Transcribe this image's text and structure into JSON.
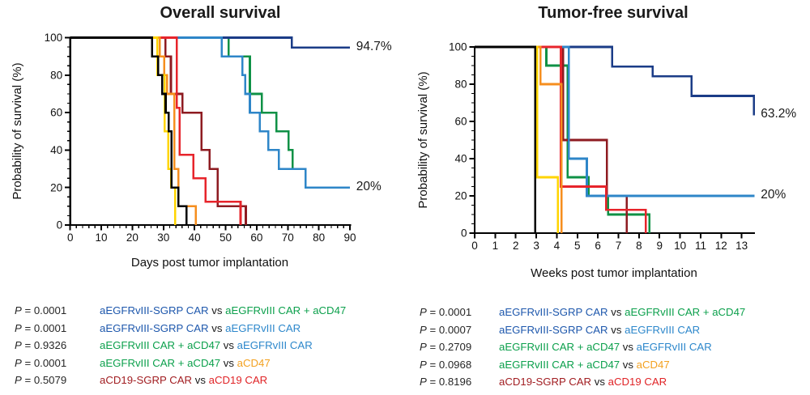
{
  "chart_data": {
    "charts": [
      {
        "type": "line",
        "subtype": "kaplan-meier-step",
        "title": "Overall survival",
        "xlabel": "Days post tumor implantation",
        "ylabel": "Probability of survival (%)",
        "x_axis": {
          "ticks": [
            0,
            10,
            20,
            30,
            40,
            50,
            60,
            70,
            80,
            90
          ],
          "minor_step": 2,
          "max": 90.4
        },
        "y_axis": {
          "ticks": [
            0,
            20,
            40,
            60,
            80,
            100
          ],
          "minor_step": 5,
          "range": [
            0,
            100
          ]
        },
        "grid": false,
        "legend_position": "none",
        "annotations": [
          {
            "text": "94.7%",
            "x": 92,
            "y": 95.2
          },
          {
            "text": "20%",
            "x": 92,
            "y": 20.2
          }
        ],
        "series": [
          {
            "id": "green",
            "label": "aEGFRvIII CAR + aCD47",
            "color": "#0f9146",
            "points": [
              [
                0,
                100
              ],
              [
                51,
                100
              ],
              [
                51,
                90
              ],
              [
                57.8,
                90
              ],
              [
                57.8,
                70
              ],
              [
                61.7,
                70
              ],
              [
                61.7,
                60
              ],
              [
                66.3,
                60
              ],
              [
                66.3,
                50
              ],
              [
                70.3,
                50
              ],
              [
                70.3,
                40
              ],
              [
                71.6,
                40
              ],
              [
                71.6,
                30
              ],
              [
                75.7,
                30
              ],
              [
                75.7,
                20
              ],
              [
                90,
                20
              ]
            ]
          },
          {
            "id": "darkred",
            "label": "aCD19-SGRP CAR",
            "color": "#8e1b21",
            "points": [
              [
                0,
                100
              ],
              [
                30.6,
                100
              ],
              [
                30.6,
                90
              ],
              [
                32.4,
                90
              ],
              [
                32.4,
                70
              ],
              [
                36.1,
                70
              ],
              [
                36.1,
                60
              ],
              [
                42.2,
                60
              ],
              [
                42.2,
                40
              ],
              [
                44.8,
                40
              ],
              [
                44.8,
                30
              ],
              [
                47.4,
                30
              ],
              [
                47.4,
                10
              ],
              [
                56.5,
                10
              ],
              [
                56.5,
                0
              ]
            ]
          },
          {
            "id": "darkblue",
            "label": "aEGFRvIII-SGRP CAR",
            "color": "#1b3c87",
            "points": [
              [
                0,
                100
              ],
              [
                71.3,
                100
              ],
              [
                71.3,
                94.7
              ],
              [
                90,
                94.7
              ]
            ]
          },
          {
            "id": "lightblue",
            "label": "aEGFRvIII CAR",
            "color": "#2e86c8",
            "points": [
              [
                0,
                100
              ],
              [
                48.7,
                100
              ],
              [
                48.7,
                90
              ],
              [
                55.4,
                90
              ],
              [
                55.4,
                80
              ],
              [
                56.3,
                80
              ],
              [
                56.3,
                70
              ],
              [
                57.8,
                70
              ],
              [
                57.8,
                60
              ],
              [
                61,
                60
              ],
              [
                61,
                50
              ],
              [
                63.7,
                50
              ],
              [
                63.7,
                40
              ],
              [
                67.1,
                40
              ],
              [
                67.1,
                30
              ],
              [
                75.7,
                30
              ],
              [
                75.7,
                20
              ],
              [
                90,
                20
              ]
            ]
          },
          {
            "id": "red",
            "label": "aCD19 CAR",
            "color": "#e7242b",
            "points": [
              [
                0,
                100
              ],
              [
                34.3,
                100
              ],
              [
                34.3,
                62.5
              ],
              [
                35.2,
                62.5
              ],
              [
                35.2,
                37.5
              ],
              [
                39.6,
                37.5
              ],
              [
                39.6,
                25
              ],
              [
                43.5,
                25
              ],
              [
                43.5,
                12.5
              ],
              [
                54.8,
                12.5
              ],
              [
                54.8,
                0
              ]
            ]
          },
          {
            "id": "orange",
            "label": "aCD47",
            "color": "#f68e1e",
            "points": [
              [
                0,
                100
              ],
              [
                28.8,
                100
              ],
              [
                28.8,
                90
              ],
              [
                30.2,
                90
              ],
              [
                30.2,
                80
              ],
              [
                31.2,
                80
              ],
              [
                31.2,
                70
              ],
              [
                33.5,
                70
              ],
              [
                33.5,
                30
              ],
              [
                34.8,
                30
              ],
              [
                34.8,
                10
              ],
              [
                40.4,
                10
              ],
              [
                40.4,
                0
              ]
            ]
          },
          {
            "id": "yellow",
            "color": "#ffd400",
            "points": [
              [
                0,
                100
              ],
              [
                28,
                100
              ],
              [
                28,
                80
              ],
              [
                30.4,
                80
              ],
              [
                30.4,
                50
              ],
              [
                31.5,
                50
              ],
              [
                31.5,
                30
              ],
              [
                32.5,
                30
              ],
              [
                32.5,
                20
              ],
              [
                33.8,
                20
              ],
              [
                33.8,
                0
              ]
            ]
          },
          {
            "id": "black",
            "color": "#000000",
            "points": [
              [
                0,
                100
              ],
              [
                26.3,
                100
              ],
              [
                26.3,
                90
              ],
              [
                28.3,
                90
              ],
              [
                28.3,
                80
              ],
              [
                29.6,
                80
              ],
              [
                29.6,
                70
              ],
              [
                30.7,
                70
              ],
              [
                30.7,
                60
              ],
              [
                31.7,
                60
              ],
              [
                31.7,
                50
              ],
              [
                32.6,
                50
              ],
              [
                32.6,
                20
              ],
              [
                34.8,
                20
              ],
              [
                34.8,
                10
              ],
              [
                37.4,
                10
              ],
              [
                37.4,
                0
              ]
            ]
          }
        ]
      },
      {
        "type": "line",
        "subtype": "kaplan-meier-step",
        "title": "Tumor-free survival",
        "xlabel": "Weeks post tumor implantation",
        "ylabel": "Probability of survival (%)",
        "x_axis": {
          "ticks": [
            0,
            1,
            2,
            3,
            4,
            5,
            6,
            7,
            8,
            9,
            10,
            11,
            12,
            13
          ],
          "minor_step": null,
          "max": 13.65
        },
        "y_axis": {
          "ticks": [
            0,
            20,
            40,
            60,
            80,
            100
          ],
          "minor_step": 5,
          "range": [
            0,
            100
          ]
        },
        "grid": false,
        "legend_position": "none",
        "annotations": [
          {
            "text": "63.2%",
            "x": 13.93,
            "y": 64
          },
          {
            "text": "20%",
            "x": 13.93,
            "y": 20.3
          }
        ],
        "series": [
          {
            "id": "green",
            "label": "aEGFRvIII CAR + aCD47",
            "color": "#0f9146",
            "points": [
              [
                0,
                100
              ],
              [
                3.49,
                100
              ],
              [
                3.49,
                90
              ],
              [
                4.52,
                90
              ],
              [
                4.52,
                30
              ],
              [
                5.55,
                30
              ],
              [
                5.55,
                20
              ],
              [
                6.5,
                20
              ],
              [
                6.5,
                10
              ],
              [
                8.5,
                10
              ],
              [
                8.5,
                0
              ]
            ]
          },
          {
            "id": "darkred",
            "label": "aCD19-SGRP CAR",
            "color": "#8e1b21",
            "points": [
              [
                0,
                100
              ],
              [
                4.31,
                100
              ],
              [
                4.31,
                50
              ],
              [
                6.43,
                50
              ],
              [
                6.43,
                20
              ],
              [
                7.4,
                20
              ],
              [
                7.4,
                0
              ]
            ]
          },
          {
            "id": "darkblue",
            "label": "aEGFRvIII-SGRP CAR",
            "color": "#1b3c87",
            "points": [
              [
                0,
                100
              ],
              [
                6.7,
                100
              ],
              [
                6.7,
                89.5
              ],
              [
                8.66,
                89.5
              ],
              [
                8.66,
                84.2
              ],
              [
                10.56,
                84.2
              ],
              [
                10.56,
                73.7
              ],
              [
                13.6,
                73.7
              ],
              [
                13.6,
                63.2
              ]
            ]
          },
          {
            "id": "lightblue",
            "label": "aEGFRvIII CAR",
            "color": "#2e86c8",
            "points": [
              [
                0,
                100
              ],
              [
                4.59,
                100
              ],
              [
                4.59,
                40
              ],
              [
                5.46,
                40
              ],
              [
                5.46,
                20
              ],
              [
                13.63,
                20
              ]
            ]
          },
          {
            "id": "red",
            "label": "aCD19 CAR",
            "color": "#e7242b",
            "points": [
              [
                0,
                100
              ],
              [
                4.2,
                100
              ],
              [
                4.2,
                25
              ],
              [
                6.4,
                25
              ],
              [
                6.4,
                12.5
              ],
              [
                8.33,
                12.5
              ],
              [
                8.33,
                0
              ]
            ]
          },
          {
            "id": "orange",
            "label": "aCD47",
            "color": "#f68e1e",
            "points": [
              [
                0,
                100
              ],
              [
                3.2,
                100
              ],
              [
                3.2,
                80
              ],
              [
                4.23,
                80
              ],
              [
                4.23,
                0
              ]
            ]
          },
          {
            "id": "yellow",
            "color": "#ffd400",
            "points": [
              [
                0,
                100
              ],
              [
                3.05,
                100
              ],
              [
                3.05,
                30
              ],
              [
                4.05,
                30
              ],
              [
                4.05,
                0
              ]
            ]
          },
          {
            "id": "black",
            "color": "#000000",
            "points": [
              [
                0,
                100
              ],
              [
                2.95,
                100
              ],
              [
                2.95,
                0
              ]
            ]
          }
        ]
      }
    ],
    "stats": {
      "p_symbol": "P",
      "separator": "vs",
      "blocks": [
        {
          "rows": [
            {
              "p": "0.0001",
              "a": "aEGFRvIII-SGRP CAR",
              "a_color": "#1d57ac",
              "b": "aEGFRvIII CAR + aCD47",
              "b_color": "#0ca04c"
            },
            {
              "p": "0.0001",
              "a": "aEGFRvIII-SGRP CAR",
              "a_color": "#1d57ac",
              "b": "aEGFRvIII CAR",
              "b_color": "#2c87cb"
            },
            {
              "p": "0.9326",
              "a": "aEGFRvIII CAR + aCD47",
              "a_color": "#0ca04c",
              "b": "aEGFRvIII CAR",
              "b_color": "#2c87cb"
            },
            {
              "p": "0.0001",
              "a": "aEGFRvIII CAR + aCD47",
              "a_color": "#0ca04c",
              "b": "aCD47",
              "b_color": "#f3a120"
            },
            {
              "p": "0.5079",
              "a": "aCD19-SGRP CAR",
              "a_color": "#a11d21",
              "b": "aCD19 CAR",
              "b_color": "#e02326"
            }
          ]
        },
        {
          "rows": [
            {
              "p": "0.0001",
              "a": "aEGFRvIII-SGRP CAR",
              "a_color": "#1d57ac",
              "b": "aEGFRvIII CAR + aCD47",
              "b_color": "#0ca04c"
            },
            {
              "p": "0.0007",
              "a": "aEGFRvIII-SGRP CAR",
              "a_color": "#1d57ac",
              "b": "aEGFRvIII CAR",
              "b_color": "#2c87cb"
            },
            {
              "p": "0.2709",
              "a": "aEGFRvIII CAR + aCD47",
              "a_color": "#0ca04c",
              "b": "aEGFRvIII CAR",
              "b_color": "#2c87cb"
            },
            {
              "p": "0.0968",
              "a": "aEGFRvIII CAR + aCD47",
              "a_color": "#0ca04c",
              "b": "aCD47",
              "b_color": "#f3a120"
            },
            {
              "p": "0.8196",
              "a": "aCD19-SGRP CAR",
              "a_color": "#a11d21",
              "b": "aCD19 CAR",
              "b_color": "#e02326"
            }
          ]
        }
      ]
    }
  }
}
